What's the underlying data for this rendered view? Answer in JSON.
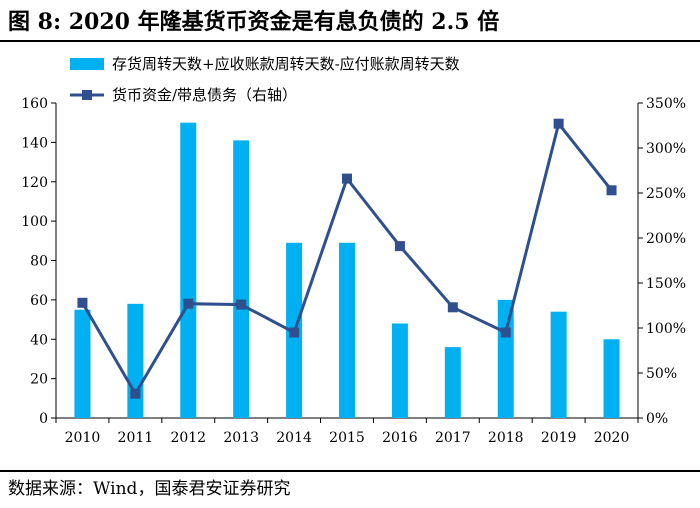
{
  "figure": {
    "title": "图 8:  2020 年隆基货币资金是有息负债的 2.5 倍",
    "source": "数据来源：Wind，国泰君安证券研究"
  },
  "chart_data": {
    "type": "bar",
    "categories": [
      "2010",
      "2011",
      "2012",
      "2013",
      "2014",
      "2015",
      "2016",
      "2017",
      "2018",
      "2019",
      "2020"
    ],
    "series": [
      {
        "name": "存货周转天数+应收账款周转天数-应付账款周转天数",
        "kind": "bar",
        "axis": "left",
        "color": "#00b0f0",
        "values": [
          55,
          58,
          150,
          141,
          89,
          89,
          48,
          36,
          60,
          54,
          40
        ]
      },
      {
        "name": "货币资金/带息债务（右轴）",
        "kind": "line",
        "axis": "right",
        "color": "#2f4f8f",
        "values": [
          128,
          27,
          127,
          126,
          95,
          266,
          191,
          123,
          95,
          327,
          253
        ]
      }
    ],
    "y_left": {
      "ylim": [
        0,
        160
      ],
      "ticks": [
        0,
        20,
        40,
        60,
        80,
        100,
        120,
        140,
        160
      ],
      "tick_labels": [
        "0",
        "20",
        "40",
        "60",
        "80",
        "100",
        "120",
        "140",
        "160"
      ]
    },
    "y_right": {
      "ylim": [
        0,
        350
      ],
      "ticks": [
        0,
        50,
        100,
        150,
        200,
        250,
        300,
        350
      ],
      "tick_labels": [
        "0%",
        "50%",
        "100%",
        "150%",
        "200%",
        "250%",
        "300%",
        "350%"
      ]
    },
    "grid": false,
    "legend": "top-center"
  }
}
